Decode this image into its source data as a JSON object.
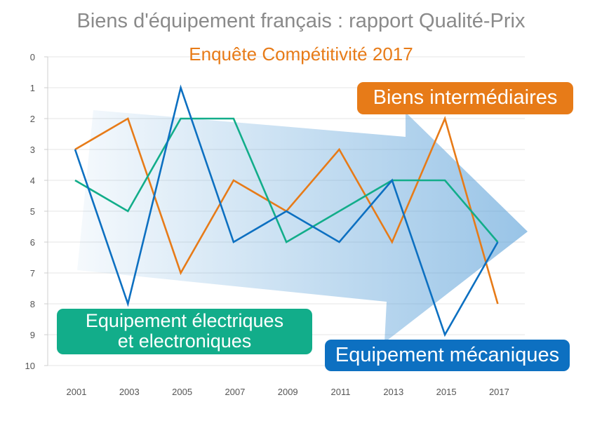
{
  "title": "Biens d'équipement français : rapport Qualité-Prix",
  "subtitle": "Enquête Compétitivité 2017",
  "colors": {
    "title": "#8a8a8a",
    "subtitle": "#e77b18",
    "grid": "#e4e4e4",
    "arrow": "#5aa0d8"
  },
  "chart_data": {
    "type": "line",
    "title": "Biens d'équipement français : rapport Qualité-Prix",
    "subtitle": "Enquête Compétitivité 2017",
    "x": [
      "2001",
      "2003",
      "2005",
      "2007",
      "2009",
      "2011",
      "2013",
      "2015",
      "2017"
    ],
    "ylim": [
      0,
      10
    ],
    "y_inverted": true,
    "y_ticks": [
      "0",
      "1",
      "2",
      "3",
      "4",
      "5",
      "6",
      "7",
      "8",
      "9",
      "10"
    ],
    "grid": true,
    "series": [
      {
        "name": "Biens intermédiaires",
        "color": "#e77b18",
        "values": [
          3,
          2,
          7,
          4,
          5,
          3,
          6,
          2,
          8
        ]
      },
      {
        "name": "Equipement électriques et electroniques",
        "color": "#12ad8a",
        "values": [
          4,
          5,
          2,
          2,
          6,
          5,
          4,
          4,
          6
        ]
      },
      {
        "name": "Equipement mécaniques",
        "color": "#0d70c1",
        "values": [
          3,
          8,
          1,
          6,
          5,
          6,
          4,
          9,
          6
        ]
      }
    ]
  },
  "labels": {
    "inter": {
      "line1": "Biens intermédiaires",
      "color": "#e77b18"
    },
    "elec": {
      "line1": "Equipement électriques",
      "line2": "et electroniques",
      "color": "#12ad8a"
    },
    "meca": {
      "line1": "Equipement mécaniques",
      "color": "#0d70c1"
    }
  }
}
